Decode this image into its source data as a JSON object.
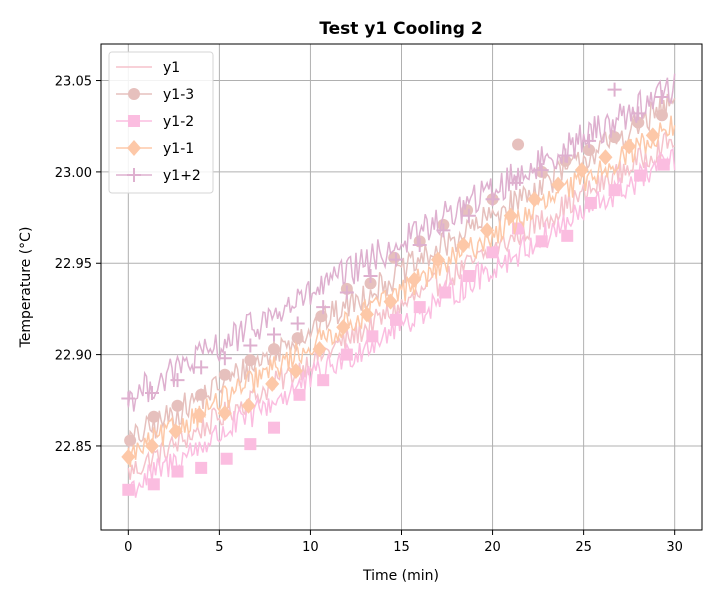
{
  "chart_data": {
    "type": "line",
    "title": "Test y1 Cooling 2",
    "xlabel": "Time (min)",
    "ylabel": "Temperature (°C)",
    "xlim": [
      -1.5,
      31.5
    ],
    "ylim": [
      22.804,
      23.07
    ],
    "xticks": [
      0,
      5,
      10,
      15,
      20,
      25,
      30
    ],
    "xtick_labels": [
      "0",
      "5",
      "10",
      "15",
      "20",
      "25",
      "30"
    ],
    "yticks": [
      22.85,
      22.9,
      22.95,
      23.0,
      23.05
    ],
    "ytick_labels": [
      "22.85",
      "22.90",
      "22.95",
      "23.00",
      "23.05"
    ],
    "grid": true,
    "legend_position": "top-left",
    "series": [
      {
        "name": "y1",
        "color": "#f5c2cb",
        "marker": "none",
        "start": 22.835,
        "end": 23.018,
        "noise": 0.007,
        "markers": []
      },
      {
        "name": "y1-3",
        "color": "#e6c0bd",
        "marker": "circle",
        "start": 22.852,
        "end": 23.038,
        "noise": 0.008,
        "markers": [
          [
            0.1,
            22.853
          ],
          [
            1.4,
            22.866
          ],
          [
            2.7,
            22.872
          ],
          [
            4.0,
            22.878
          ],
          [
            5.3,
            22.889
          ],
          [
            6.7,
            22.897
          ],
          [
            8.0,
            22.903
          ],
          [
            9.3,
            22.909
          ],
          [
            10.6,
            22.921
          ],
          [
            12.0,
            22.936
          ],
          [
            13.3,
            22.939
          ],
          [
            14.6,
            22.953
          ],
          [
            16.0,
            22.962
          ],
          [
            17.3,
            22.971
          ],
          [
            18.6,
            22.979
          ],
          [
            20.0,
            22.985
          ],
          [
            21.4,
            23.015
          ],
          [
            22.7,
            23.0
          ],
          [
            24.0,
            23.006
          ],
          [
            25.3,
            23.012
          ],
          [
            26.7,
            23.019
          ],
          [
            28.0,
            23.027
          ],
          [
            29.3,
            23.031
          ]
        ]
      },
      {
        "name": "y1-2",
        "color": "#fbbde0",
        "marker": "square",
        "start": 22.826,
        "end": 23.008,
        "noise": 0.008,
        "markers": [
          [
            0.0,
            22.826
          ],
          [
            1.4,
            22.829
          ],
          [
            2.7,
            22.836
          ],
          [
            4.0,
            22.838
          ],
          [
            5.4,
            22.843
          ],
          [
            6.7,
            22.851
          ],
          [
            8.0,
            22.86
          ],
          [
            9.4,
            22.878
          ],
          [
            10.7,
            22.886
          ],
          [
            12.0,
            22.9
          ],
          [
            13.4,
            22.91
          ],
          [
            14.7,
            22.919
          ],
          [
            16.0,
            22.926
          ],
          [
            17.4,
            22.934
          ],
          [
            18.7,
            22.943
          ],
          [
            20.0,
            22.956
          ],
          [
            21.4,
            22.969
          ],
          [
            22.7,
            22.962
          ],
          [
            24.1,
            22.965
          ],
          [
            25.4,
            22.983
          ],
          [
            26.7,
            22.99
          ],
          [
            28.1,
            22.998
          ],
          [
            29.4,
            23.004
          ]
        ]
      },
      {
        "name": "y1-1",
        "color": "#fdc8a8",
        "marker": "diamond",
        "start": 22.844,
        "end": 23.026,
        "noise": 0.007,
        "markers": [
          [
            0.0,
            22.844
          ],
          [
            1.3,
            22.85
          ],
          [
            2.6,
            22.858
          ],
          [
            3.9,
            22.867
          ],
          [
            5.3,
            22.868
          ],
          [
            6.6,
            22.872
          ],
          [
            7.9,
            22.884
          ],
          [
            9.2,
            22.891
          ],
          [
            10.5,
            22.903
          ],
          [
            11.8,
            22.915
          ],
          [
            13.1,
            22.922
          ],
          [
            14.4,
            22.929
          ],
          [
            15.7,
            22.941
          ],
          [
            17.0,
            22.952
          ],
          [
            18.4,
            22.96
          ],
          [
            19.7,
            22.968
          ],
          [
            21.0,
            22.976
          ],
          [
            22.3,
            22.985
          ],
          [
            23.6,
            22.993
          ],
          [
            24.9,
            23.001
          ],
          [
            26.2,
            23.008
          ],
          [
            27.5,
            23.014
          ],
          [
            28.8,
            23.02
          ]
        ]
      },
      {
        "name": "y1+2",
        "color": "#deb0cf",
        "marker": "plus",
        "start": 22.876,
        "end": 23.047,
        "noise": 0.009,
        "markers": [
          [
            0.0,
            22.876
          ],
          [
            1.3,
            22.879
          ],
          [
            2.7,
            22.886
          ],
          [
            4.0,
            22.893
          ],
          [
            5.3,
            22.898
          ],
          [
            6.7,
            22.905
          ],
          [
            8.0,
            22.911
          ],
          [
            9.3,
            22.917
          ],
          [
            10.7,
            22.926
          ],
          [
            12.0,
            22.934
          ],
          [
            13.3,
            22.943
          ],
          [
            14.7,
            22.952
          ],
          [
            16.0,
            22.96
          ],
          [
            17.3,
            22.968
          ],
          [
            18.7,
            22.976
          ],
          [
            20.0,
            22.985
          ],
          [
            21.3,
            22.994
          ],
          [
            22.7,
            23.001
          ],
          [
            24.0,
            23.009
          ],
          [
            25.3,
            23.017
          ],
          [
            26.7,
            23.045
          ],
          [
            28.0,
            23.032
          ],
          [
            29.3,
            23.041
          ]
        ]
      }
    ],
    "samples_per_series": 300
  }
}
